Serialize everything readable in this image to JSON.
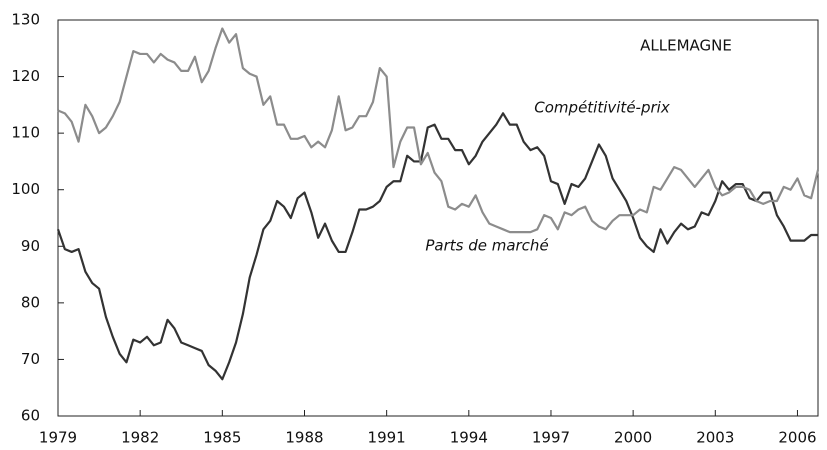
{
  "chart_data": {
    "type": "line",
    "title": "ALLEMAGNE",
    "x": [
      1979,
      1979.25,
      1979.5,
      1979.75,
      1980,
      1980.25,
      1980.5,
      1980.75,
      1981,
      1981.25,
      1981.5,
      1981.75,
      1982,
      1982.25,
      1982.5,
      1982.75,
      1983,
      1983.25,
      1983.5,
      1983.75,
      1984,
      1984.25,
      1984.5,
      1984.75,
      1985,
      1985.25,
      1985.5,
      1985.75,
      1986,
      1986.25,
      1986.5,
      1986.75,
      1987,
      1987.25,
      1987.5,
      1987.75,
      1988,
      1988.25,
      1988.5,
      1988.75,
      1989,
      1989.25,
      1989.5,
      1989.75,
      1990,
      1990.25,
      1990.5,
      1990.75,
      1991,
      1991.25,
      1991.5,
      1991.75,
      1992,
      1992.25,
      1992.5,
      1992.75,
      1993,
      1993.25,
      1993.5,
      1993.75,
      1994,
      1994.25,
      1994.5,
      1994.75,
      1995,
      1995.25,
      1995.5,
      1995.75,
      1996,
      1996.25,
      1996.5,
      1996.75,
      1997,
      1997.25,
      1997.5,
      1997.75,
      1998,
      1998.25,
      1998.5,
      1998.75,
      1999,
      1999.25,
      1999.5,
      1999.75,
      2000,
      2000.25,
      2000.5,
      2000.75,
      2001,
      2001.25,
      2001.5,
      2001.75,
      2002,
      2002.25,
      2002.5,
      2002.75,
      2003,
      2003.25,
      2003.5,
      2003.75,
      2004,
      2004.25,
      2004.5,
      2004.75,
      2005,
      2005.25,
      2005.5,
      2005.75,
      2006,
      2006.25,
      2006.5,
      2006.75
    ],
    "series": [
      {
        "name": "Compétitivité-prix",
        "color": "#333333",
        "values": [
          93,
          89.5,
          89,
          89.5,
          85.5,
          83.5,
          82.5,
          77.5,
          74,
          71,
          69.5,
          73.5,
          73,
          74,
          72.5,
          73,
          77,
          75.5,
          73,
          72.5,
          72,
          71.5,
          69,
          68,
          66.5,
          69.5,
          73,
          78,
          84.5,
          88.5,
          93,
          94.5,
          98,
          97,
          95,
          98.5,
          99.5,
          96,
          91.5,
          94,
          91,
          89,
          89,
          92.5,
          96.5,
          96.5,
          97,
          98,
          100.5,
          101.5,
          101.5,
          106,
          105,
          105,
          111,
          111.5,
          109,
          109,
          107,
          107,
          104.5,
          106,
          108.5,
          110,
          111.5,
          113.5,
          111.5,
          111.5,
          108.5,
          107,
          107.5,
          106,
          101.5,
          101,
          97.5,
          101,
          100.5,
          102,
          105,
          108,
          106,
          102,
          100,
          98,
          95,
          91.5,
          90,
          89,
          93,
          90.5,
          92.5,
          94,
          93,
          93.5,
          96,
          95.5,
          98,
          101.5,
          100,
          101,
          101,
          98.5,
          98,
          99.5,
          99.5,
          95.5,
          93.5,
          91,
          91,
          91,
          92,
          92
        ]
      },
      {
        "name": "Parts de marché",
        "color": "#8c8c8c",
        "values": [
          114,
          113.5,
          112,
          108.5,
          115,
          113,
          110,
          111,
          113,
          115.5,
          120,
          124.5,
          124,
          124,
          122.5,
          124,
          123,
          122.5,
          121,
          121,
          123.5,
          119,
          121,
          125,
          128.5,
          126,
          127.5,
          121.5,
          120.5,
          120,
          115,
          116.5,
          111.5,
          111.5,
          109,
          109,
          109.5,
          107.5,
          108.5,
          107.5,
          110.5,
          116.5,
          110.5,
          111,
          113,
          113,
          115.5,
          121.5,
          120,
          104,
          108.5,
          111,
          111,
          104.5,
          106.5,
          103,
          101.5,
          97,
          96.5,
          97.5,
          97,
          99,
          96,
          94,
          93.5,
          93,
          92.5,
          92.5,
          92.5,
          92.5,
          93,
          95.5,
          95,
          93,
          96,
          95.5,
          96.5,
          97,
          94.5,
          93.5,
          93,
          94.5,
          95.5,
          95.5,
          95.5,
          96.5,
          96,
          100.5,
          100,
          102,
          104,
          103.5,
          102,
          100.5,
          102,
          103.5,
          100.5,
          99,
          99.5,
          100.5,
          100.5,
          100,
          98,
          97.5,
          98,
          98,
          100.5,
          100,
          102,
          99,
          98.5,
          103.5
        ]
      }
    ],
    "xlim": [
      1979,
      2006.75
    ],
    "xticks": [
      1979,
      1982,
      1985,
      1988,
      1991,
      1994,
      1997,
      2000,
      2003,
      2006
    ],
    "ylim": [
      60,
      130
    ],
    "yticks": [
      60,
      70,
      80,
      90,
      100,
      110,
      120,
      130
    ],
    "grid": false
  }
}
